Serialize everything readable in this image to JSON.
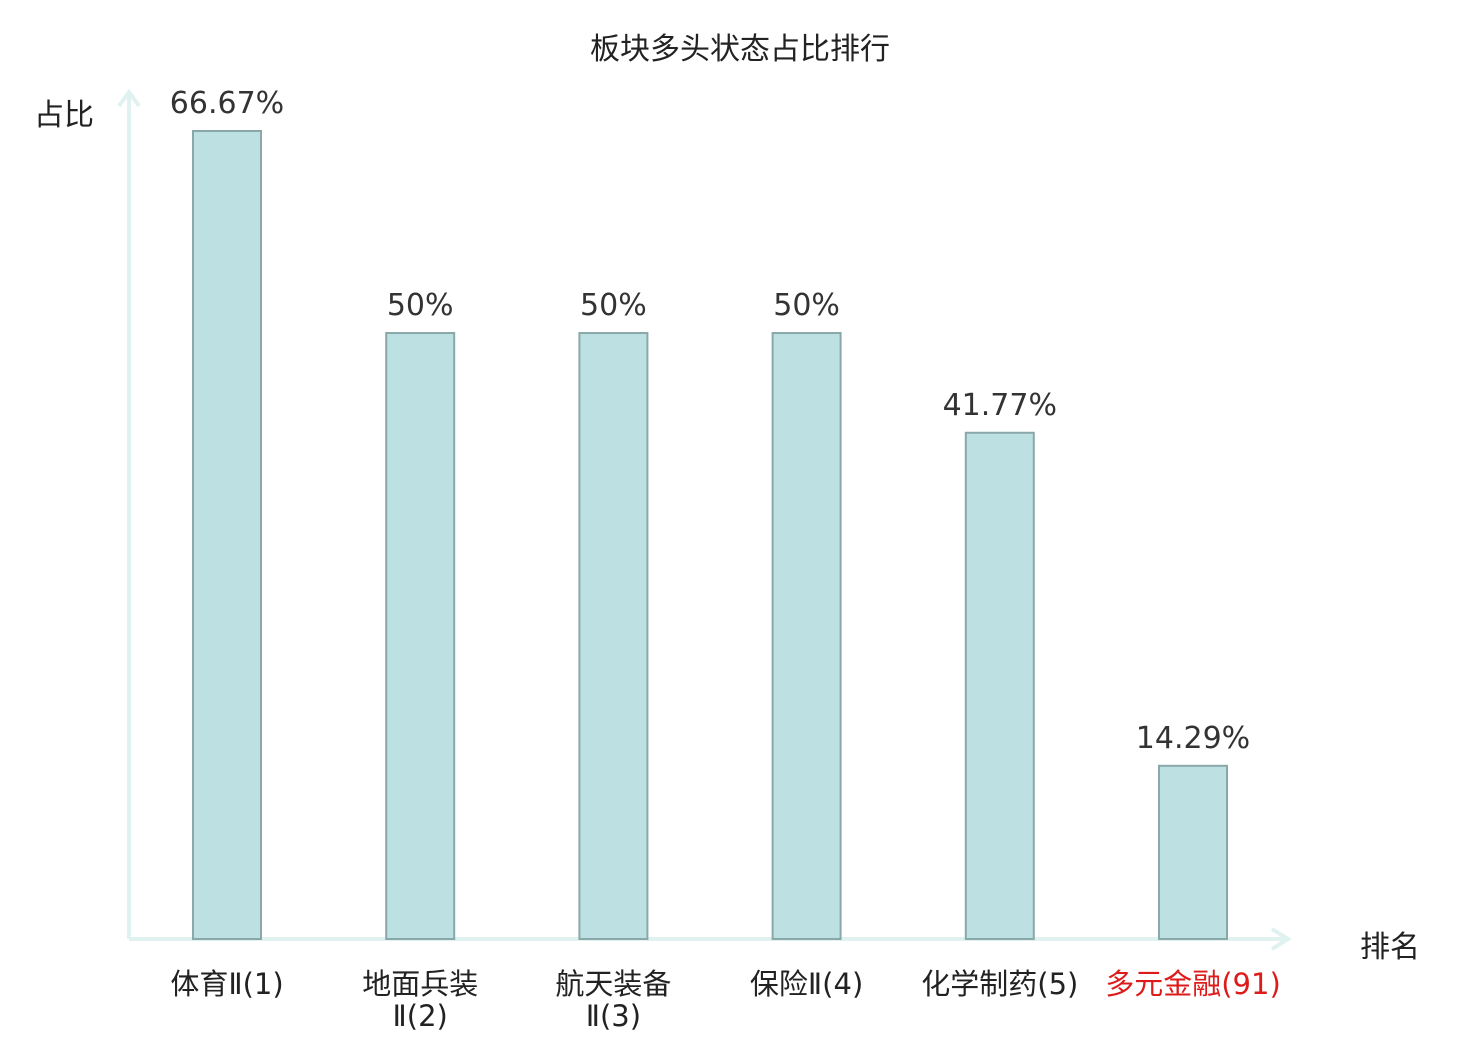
{
  "chart_data": {
    "type": "bar",
    "title": "板块多头状态占比排行",
    "ylabel": "占比",
    "xlabel": "排名",
    "ylim": [
      0,
      66.67
    ],
    "categories": [
      {
        "lines": [
          "体育Ⅱ(1)"
        ],
        "highlight": false
      },
      {
        "lines": [
          "地面兵装",
          "Ⅱ(2)"
        ],
        "highlight": false
      },
      {
        "lines": [
          "航天装备",
          "Ⅱ(3)"
        ],
        "highlight": false
      },
      {
        "lines": [
          "保险Ⅱ(4)"
        ],
        "highlight": false
      },
      {
        "lines": [
          "化学制药(5)"
        ],
        "highlight": false
      },
      {
        "lines": [
          "多元金融(91)"
        ],
        "highlight": true
      }
    ],
    "values": [
      66.67,
      50,
      50,
      50,
      41.77,
      14.29
    ],
    "value_labels": [
      "66.67%",
      "50%",
      "50%",
      "50%",
      "41.77%",
      "14.29%"
    ],
    "colors": {
      "bar_fill": "#bde0e3",
      "bar_stroke": "#8aa8a9",
      "axis": "#e0f2ef",
      "text": "#222222",
      "highlight_text": "#dd1b1b"
    }
  }
}
